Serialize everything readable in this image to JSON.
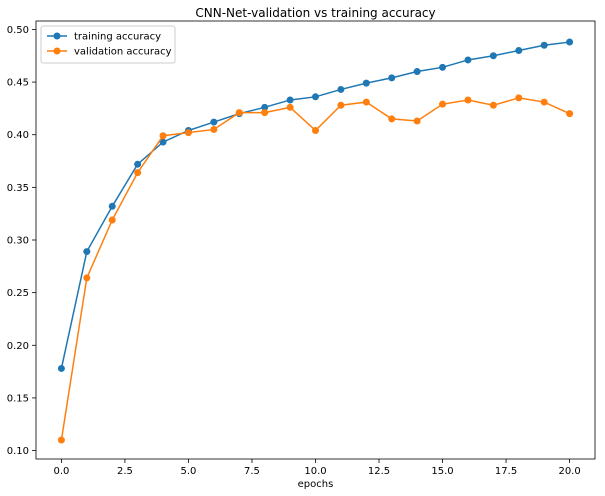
{
  "chart_data": {
    "type": "line",
    "title": "CNN-Net-validation vs training accuracy",
    "xlabel": "epochs",
    "ylabel": "",
    "xlim": [
      -1.0,
      21.0
    ],
    "ylim": [
      0.092,
      0.508
    ],
    "xticks": [
      0.0,
      2.5,
      5.0,
      7.5,
      10.0,
      12.5,
      15.0,
      17.5,
      20.0
    ],
    "xtick_labels": [
      "0.0",
      "2.5",
      "5.0",
      "7.5",
      "10.0",
      "12.5",
      "15.0",
      "17.5",
      "20.0"
    ],
    "yticks": [
      0.1,
      0.15,
      0.2,
      0.25,
      0.3,
      0.35,
      0.4,
      0.45,
      0.5
    ],
    "ytick_labels": [
      "0.10",
      "0.15",
      "0.20",
      "0.25",
      "0.30",
      "0.35",
      "0.40",
      "0.45",
      "0.50"
    ],
    "grid": false,
    "legend_position": "top-left",
    "x": [
      0,
      1,
      2,
      3,
      4,
      5,
      6,
      7,
      8,
      9,
      10,
      11,
      12,
      13,
      14,
      15,
      16,
      17,
      18,
      19,
      20
    ],
    "series": [
      {
        "name": "training accuracy",
        "color": "#1f77b4",
        "values": [
          0.178,
          0.289,
          0.332,
          0.372,
          0.393,
          0.404,
          0.412,
          0.42,
          0.426,
          0.433,
          0.436,
          0.443,
          0.449,
          0.454,
          0.46,
          0.464,
          0.471,
          0.475,
          0.48,
          0.485,
          0.488
        ]
      },
      {
        "name": "validation accuracy",
        "color": "#ff7f0e",
        "values": [
          0.11,
          0.264,
          0.319,
          0.364,
          0.399,
          0.402,
          0.405,
          0.421,
          0.421,
          0.426,
          0.404,
          0.428,
          0.431,
          0.415,
          0.413,
          0.429,
          0.433,
          0.428,
          0.435,
          0.431,
          0.42
        ]
      }
    ]
  }
}
